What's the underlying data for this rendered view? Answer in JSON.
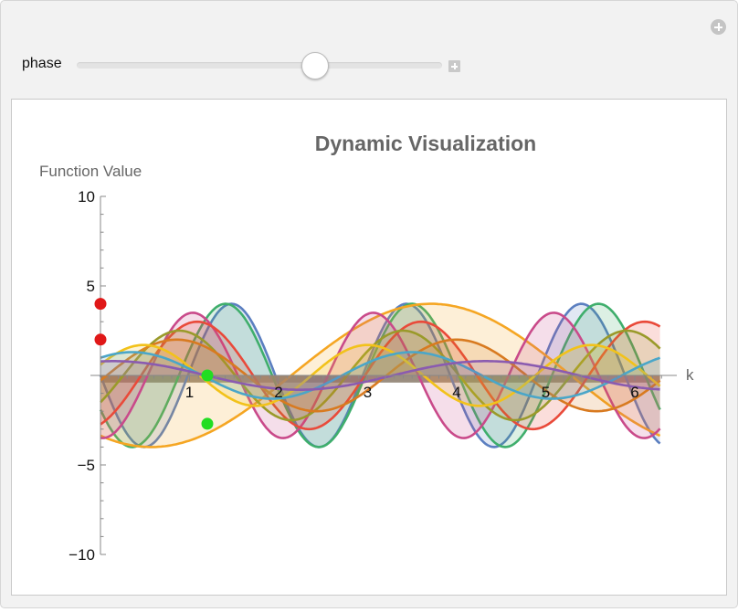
{
  "controls": {
    "phase_label": "phase",
    "phase_value": 0.65
  },
  "icons": {
    "add": "plus-circle-icon",
    "expand": "plus-square-icon"
  },
  "chart_data": {
    "type": "area",
    "title": "Dynamic Visualization",
    "ylabel": "Function Value",
    "xlabel": "k",
    "xlim": [
      0,
      6.3
    ],
    "ylim": [
      -10,
      10
    ],
    "x_ticks": [
      1,
      2,
      3,
      4,
      5,
      6
    ],
    "y_ticks": [
      10,
      5,
      -5,
      -10
    ],
    "grid": false,
    "legend": "none",
    "x_range_of_curves": [
      0,
      6.283
    ],
    "shaded_band": {
      "from": 0,
      "to": -0.4,
      "color": "#8a7a6a"
    },
    "series": [
      {
        "amplitude": 4.0,
        "frequency": 3.2,
        "color": "#5b7fc0"
      },
      {
        "amplitude": 4.0,
        "frequency": 3.0,
        "color": "#3fae6c"
      },
      {
        "amplitude": 4.0,
        "frequency": 1.0,
        "color": "#f5a623"
      },
      {
        "amplitude": 3.5,
        "frequency": 3.1,
        "color": "#c94a8a"
      },
      {
        "amplitude": 3.0,
        "frequency": 2.5,
        "color": "#e94a3a"
      },
      {
        "amplitude": 2.5,
        "frequency": 2.5,
        "color": "#9a9a2a"
      },
      {
        "amplitude": 2.0,
        "frequency": 2.0,
        "color": "#d87a20"
      },
      {
        "amplitude": 1.7,
        "frequency": 2.5,
        "color": "#f2c21a"
      },
      {
        "amplitude": 1.3,
        "frequency": 2.0,
        "color": "#4aa6c8"
      },
      {
        "amplitude": 0.8,
        "frequency": 1.5,
        "color": "#8a5bb0"
      }
    ],
    "markers": [
      {
        "x": 0.0,
        "y": 4.0,
        "color": "#e01818"
      },
      {
        "x": 0.0,
        "y": 2.0,
        "color": "#e01818"
      },
      {
        "x": 1.2,
        "y": 0.0,
        "color": "#22dd22"
      },
      {
        "x": 1.2,
        "y": -2.7,
        "color": "#22dd22"
      }
    ]
  }
}
